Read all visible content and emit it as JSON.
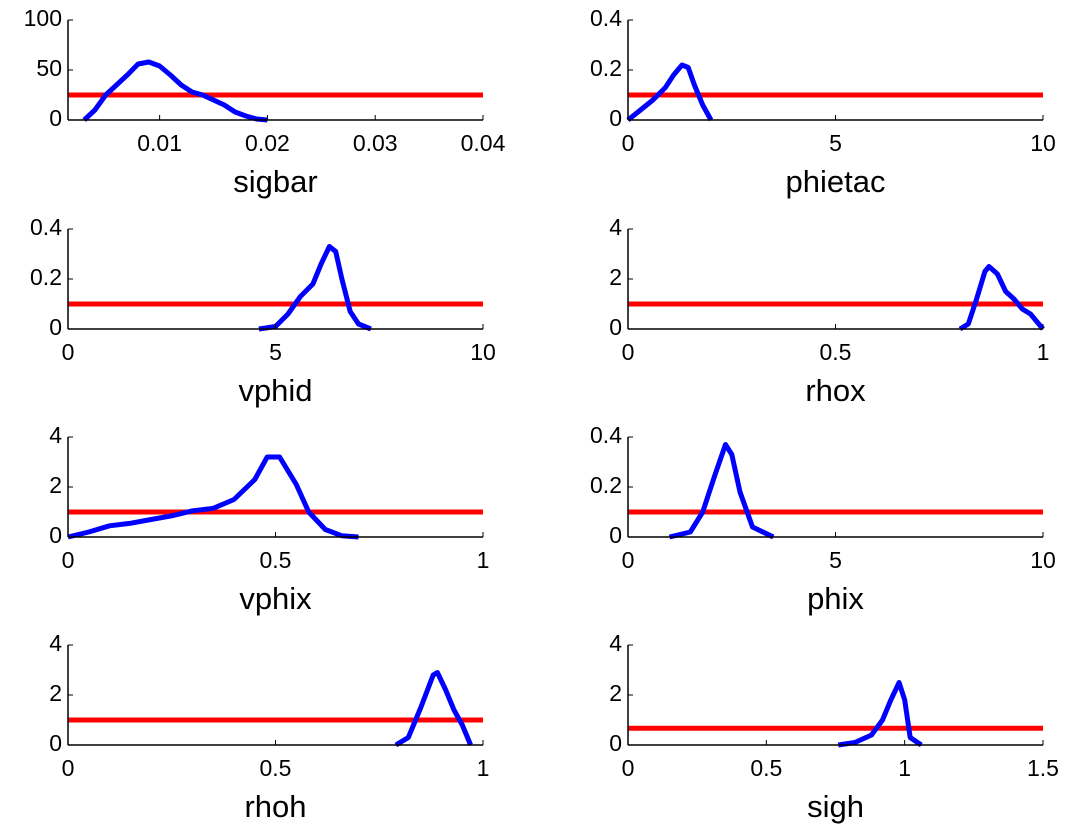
{
  "chart_data": [
    {
      "type": "line",
      "xlabel": "sigbar",
      "xlim": [
        0.0015,
        0.04
      ],
      "xticks": [
        0.01,
        0.02,
        0.03,
        0.04
      ],
      "ylim": [
        0,
        100
      ],
      "yticks": [
        0,
        50,
        100
      ],
      "series": [
        {
          "color": "#ff0000",
          "x": [
            0.0015,
            0.04
          ],
          "values": [
            25,
            25
          ]
        },
        {
          "color": "#0000ff",
          "x": [
            0.003,
            0.004,
            0.005,
            0.006,
            0.007,
            0.008,
            0.009,
            0.01,
            0.011,
            0.012,
            0.013,
            0.014,
            0.015,
            0.016,
            0.017,
            0.018,
            0.019,
            0.02
          ],
          "values": [
            0,
            10,
            25,
            35,
            45,
            56,
            58,
            54,
            45,
            35,
            28,
            25,
            20,
            15,
            8,
            4,
            1,
            0
          ]
        }
      ]
    },
    {
      "type": "line",
      "xlabel": "phietac",
      "xlim": [
        0,
        10
      ],
      "xticks": [
        0,
        5,
        10
      ],
      "ylim": [
        0,
        0.4
      ],
      "yticks": [
        0,
        0.2,
        0.4
      ],
      "series": [
        {
          "color": "#ff0000",
          "x": [
            0,
            10
          ],
          "values": [
            0.1,
            0.1
          ]
        },
        {
          "color": "#0000ff",
          "x": [
            0,
            0.3,
            0.6,
            0.9,
            1.1,
            1.3,
            1.45,
            1.6,
            1.8,
            2.0
          ],
          "values": [
            0,
            0.04,
            0.08,
            0.13,
            0.18,
            0.22,
            0.21,
            0.14,
            0.06,
            0
          ]
        }
      ]
    },
    {
      "type": "line",
      "xlabel": "vphid",
      "xlim": [
        0,
        10
      ],
      "xticks": [
        0,
        5,
        10
      ],
      "ylim": [
        0,
        0.4
      ],
      "yticks": [
        0,
        0.2,
        0.4
      ],
      "series": [
        {
          "color": "#ff0000",
          "x": [
            0,
            10
          ],
          "values": [
            0.1,
            0.1
          ]
        },
        {
          "color": "#0000ff",
          "x": [
            4.6,
            5.0,
            5.3,
            5.6,
            5.9,
            6.1,
            6.3,
            6.45,
            6.6,
            6.8,
            7.0,
            7.3
          ],
          "values": [
            0,
            0.01,
            0.06,
            0.13,
            0.18,
            0.26,
            0.33,
            0.31,
            0.2,
            0.07,
            0.02,
            0
          ]
        }
      ]
    },
    {
      "type": "line",
      "xlabel": "rhox",
      "xlim": [
        0,
        1
      ],
      "xticks": [
        0,
        0.5,
        1
      ],
      "ylim": [
        0,
        4
      ],
      "yticks": [
        0,
        2,
        4
      ],
      "series": [
        {
          "color": "#ff0000",
          "x": [
            0,
            1
          ],
          "values": [
            1,
            1
          ]
        },
        {
          "color": "#0000ff",
          "x": [
            0.8,
            0.82,
            0.84,
            0.86,
            0.87,
            0.89,
            0.91,
            0.93,
            0.95,
            0.97,
            0.99,
            1.0
          ],
          "values": [
            0,
            0.2,
            1.2,
            2.3,
            2.5,
            2.2,
            1.5,
            1.2,
            0.8,
            0.6,
            0.2,
            0
          ]
        }
      ]
    },
    {
      "type": "line",
      "xlabel": "vphix",
      "xlim": [
        0,
        1
      ],
      "xticks": [
        0,
        0.5,
        1
      ],
      "ylim": [
        0,
        4
      ],
      "yticks": [
        0,
        2,
        4
      ],
      "series": [
        {
          "color": "#ff0000",
          "x": [
            0,
            1
          ],
          "values": [
            1,
            1
          ]
        },
        {
          "color": "#0000ff",
          "x": [
            0,
            0.05,
            0.1,
            0.15,
            0.2,
            0.25,
            0.3,
            0.35,
            0.4,
            0.45,
            0.48,
            0.51,
            0.55,
            0.58,
            0.62,
            0.66,
            0.7
          ],
          "values": [
            0,
            0.2,
            0.45,
            0.55,
            0.7,
            0.85,
            1.05,
            1.15,
            1.5,
            2.3,
            3.2,
            3.2,
            2.1,
            1.0,
            0.3,
            0.05,
            0
          ]
        }
      ]
    },
    {
      "type": "line",
      "xlabel": "phix",
      "xlim": [
        0,
        10
      ],
      "xticks": [
        0,
        5,
        10
      ],
      "ylim": [
        0,
        0.4
      ],
      "yticks": [
        0,
        0.2,
        0.4
      ],
      "series": [
        {
          "color": "#ff0000",
          "x": [
            0,
            10
          ],
          "values": [
            0.1,
            0.1
          ]
        },
        {
          "color": "#0000ff",
          "x": [
            1.0,
            1.5,
            1.8,
            2.1,
            2.35,
            2.5,
            2.7,
            3.0,
            3.5
          ],
          "values": [
            0,
            0.02,
            0.1,
            0.25,
            0.37,
            0.33,
            0.18,
            0.04,
            0
          ]
        }
      ]
    },
    {
      "type": "line",
      "xlabel": "rhoh",
      "xlim": [
        0,
        1
      ],
      "xticks": [
        0,
        0.5,
        1
      ],
      "ylim": [
        0,
        4
      ],
      "yticks": [
        0,
        2,
        4
      ],
      "series": [
        {
          "color": "#ff0000",
          "x": [
            0,
            1
          ],
          "values": [
            1,
            1
          ]
        },
        {
          "color": "#0000ff",
          "x": [
            0.79,
            0.82,
            0.85,
            0.88,
            0.89,
            0.91,
            0.93,
            0.95,
            0.97
          ],
          "values": [
            0,
            0.3,
            1.5,
            2.8,
            2.9,
            2.2,
            1.4,
            0.8,
            0
          ]
        }
      ]
    },
    {
      "type": "line",
      "xlabel": "sigh",
      "xlim": [
        0,
        1.5
      ],
      "xticks": [
        0,
        0.5,
        1,
        1.5
      ],
      "ylim": [
        0,
        4
      ],
      "yticks": [
        0,
        2,
        4
      ],
      "series": [
        {
          "color": "#ff0000",
          "x": [
            0,
            1.5
          ],
          "values": [
            0.67,
            0.67
          ]
        },
        {
          "color": "#0000ff",
          "x": [
            0.76,
            0.82,
            0.88,
            0.92,
            0.95,
            0.98,
            1.0,
            1.02,
            1.06
          ],
          "values": [
            0,
            0.1,
            0.4,
            1.0,
            1.8,
            2.5,
            1.8,
            0.3,
            0
          ]
        }
      ]
    }
  ]
}
